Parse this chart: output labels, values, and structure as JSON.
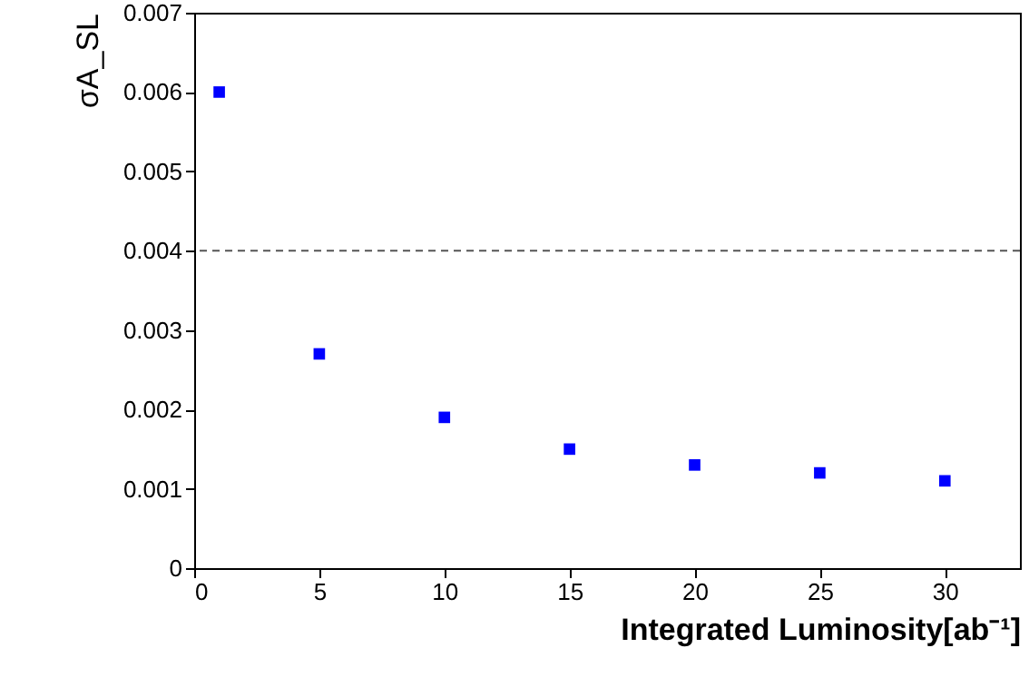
{
  "chart_data": {
    "type": "scatter",
    "xlabel": "Integrated Luminosity[ab⁻¹]",
    "ylabel": "σA_SL",
    "x": [
      1,
      5,
      10,
      15,
      20,
      25,
      30
    ],
    "series": [
      {
        "color": "#0000ff",
        "values": [
          0.006,
          0.0027,
          0.0019,
          0.0015,
          0.0013,
          0.0012,
          0.0011
        ]
      }
    ],
    "xlim": [
      0,
      33
    ],
    "xticks": [
      0,
      5,
      10,
      15,
      20,
      25,
      30
    ],
    "ylim": [
      0,
      0.007
    ],
    "yticks": [
      0,
      0.001,
      0.002,
      0.003,
      0.004,
      0.005,
      0.006,
      0.007
    ],
    "ref_lines": [
      {
        "axis": "y",
        "value": 0.004,
        "color": "#555555",
        "line_style": "dashed"
      }
    ],
    "marker": "square",
    "grid": false
  }
}
